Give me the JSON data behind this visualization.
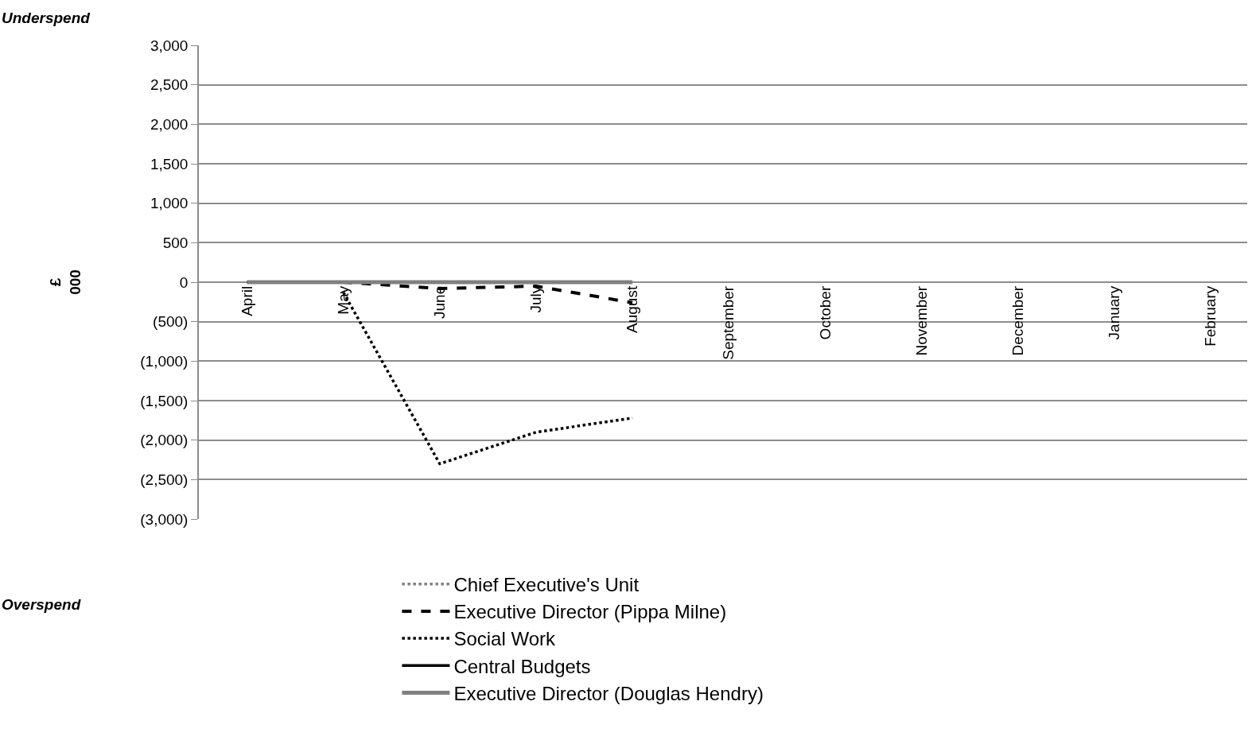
{
  "chart_data": {
    "type": "line",
    "categories": [
      "April",
      "May",
      "June",
      "July",
      "August",
      "September",
      "October",
      "November",
      "December",
      "January",
      "February"
    ],
    "ylabel": "£\n000",
    "annotations": [
      "Underspend",
      "Overspend"
    ],
    "ylim": [
      -3000,
      3000
    ],
    "yticks": [
      {
        "value": 3000,
        "label": "3,000"
      },
      {
        "value": 2500,
        "label": "2,500"
      },
      {
        "value": 2000,
        "label": "2,000"
      },
      {
        "value": 1500,
        "label": "1,500"
      },
      {
        "value": 1000,
        "label": "1,000"
      },
      500,
      0,
      {
        "value": -500,
        "label": "(500)"
      },
      {
        "value": -1000,
        "label": "(1,000)"
      },
      {
        "value": -1500,
        "label": "(1,500)"
      },
      {
        "value": -2000,
        "label": "(2,000)"
      },
      {
        "value": -2500,
        "label": "(2,500)"
      },
      {
        "value": -3000,
        "label": "(3,000)"
      }
    ],
    "grid": "y",
    "legend": "bottom",
    "marker": "none",
    "series": [
      {
        "name": "Chief Executive's Unit",
        "color": "#808080",
        "line_style": "dotted",
        "values": [
          null,
          null,
          null,
          null,
          null,
          null,
          null,
          null,
          null,
          null,
          null
        ]
      },
      {
        "name": "Executive Director (Pippa Milne)",
        "color": "#000000",
        "line_style": "dashed",
        "values": [
          0,
          0,
          -80,
          -50,
          -260,
          null,
          null,
          null,
          null,
          null,
          null
        ]
      },
      {
        "name": "Social Work",
        "color": "#000000",
        "line_style": "dotted",
        "values": [
          null,
          -130,
          -2300,
          -1900,
          -1720,
          null,
          null,
          null,
          null,
          null,
          null
        ]
      },
      {
        "name": "Central Budgets",
        "color": "#000000",
        "line_style": "solid",
        "values": [
          null,
          null,
          null,
          null,
          null,
          null,
          null,
          null,
          null,
          null,
          null
        ]
      },
      {
        "name": "Executive Director (Douglas Hendry)",
        "color": "#808080",
        "line_style": "solid",
        "values": [
          0,
          0,
          0,
          0,
          0,
          null,
          null,
          null,
          null,
          null,
          null
        ]
      }
    ]
  }
}
